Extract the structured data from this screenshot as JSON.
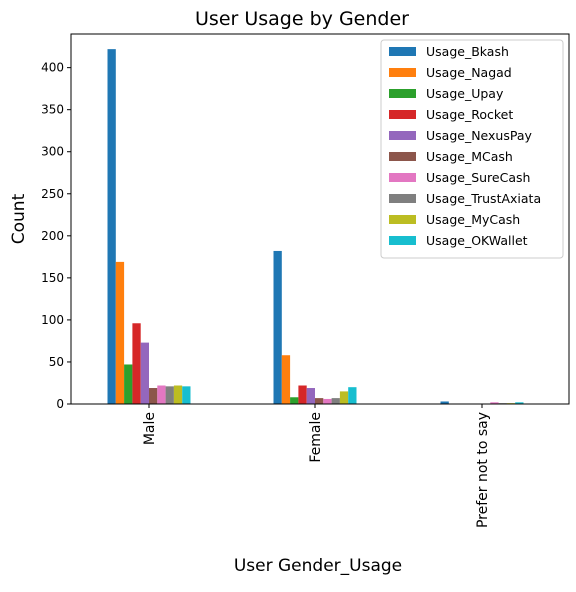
{
  "chart_data": {
    "type": "bar",
    "title": "User Usage by Gender",
    "xlabel": "User Gender_Usage",
    "ylabel": "Count",
    "categories": [
      "Male",
      "Female",
      "Prefer not to say"
    ],
    "ylim": [
      0,
      440
    ],
    "yticks": [
      0,
      50,
      100,
      150,
      200,
      250,
      300,
      350,
      400
    ],
    "grid": false,
    "legend_position": "top-right",
    "series": [
      {
        "name": "Usage_Bkash",
        "color": "#1f77b4",
        "values": [
          422,
          182,
          3
        ]
      },
      {
        "name": "Usage_Nagad",
        "color": "#ff7f0e",
        "values": [
          169,
          58,
          0
        ]
      },
      {
        "name": "Usage_Upay",
        "color": "#2ca02c",
        "values": [
          47,
          8,
          0
        ]
      },
      {
        "name": "Usage_Rocket",
        "color": "#d62728",
        "values": [
          96,
          22,
          0
        ]
      },
      {
        "name": "Usage_NexusPay",
        "color": "#9467bd",
        "values": [
          73,
          19,
          0
        ]
      },
      {
        "name": "Usage_MCash",
        "color": "#8c564b",
        "values": [
          19,
          7,
          0
        ]
      },
      {
        "name": "Usage_SureCash",
        "color": "#e377c2",
        "values": [
          22,
          6,
          2
        ]
      },
      {
        "name": "Usage_TrustAxiata",
        "color": "#7f7f7f",
        "values": [
          21,
          7,
          1
        ]
      },
      {
        "name": "Usage_MyCash",
        "color": "#bcbd22",
        "values": [
          22,
          15,
          1
        ]
      },
      {
        "name": "Usage_OKWallet",
        "color": "#17becf",
        "values": [
          21,
          20,
          2
        ]
      }
    ]
  }
}
